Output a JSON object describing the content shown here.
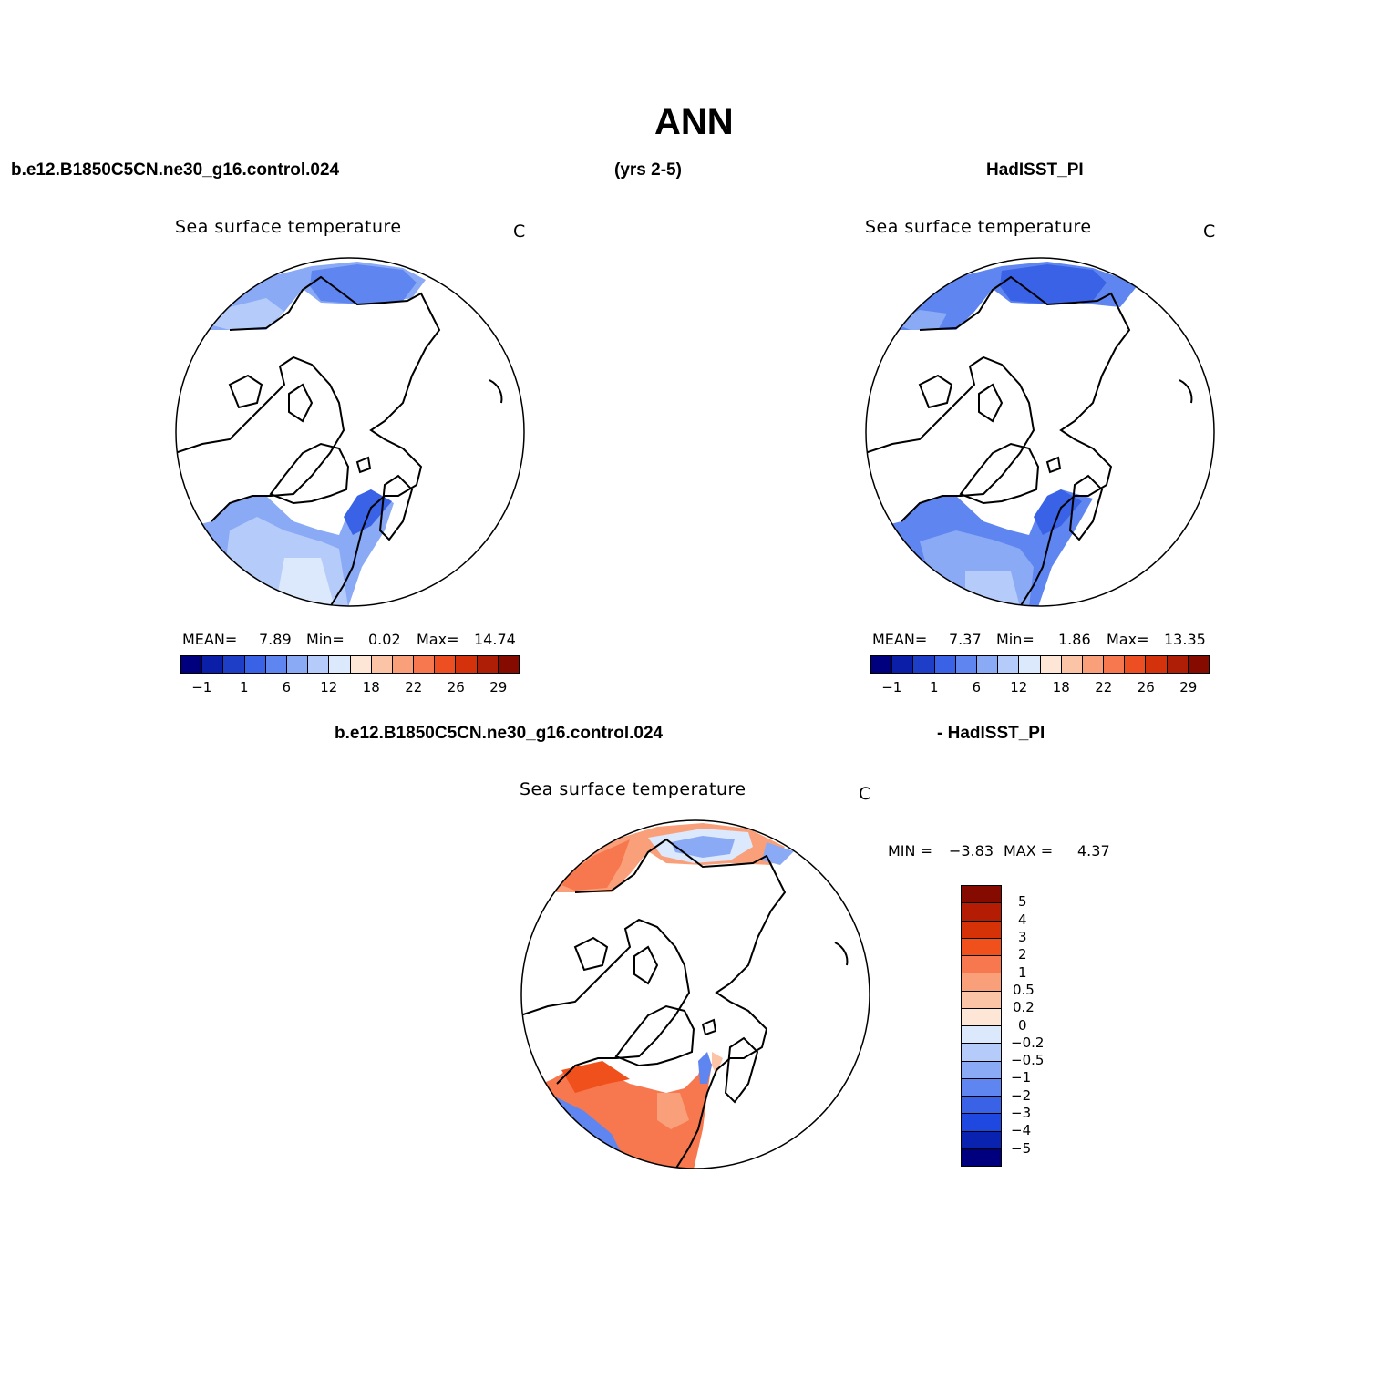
{
  "figure": {
    "title": "ANN",
    "left_header": "b.e12.B1850C5CN.ne30_g16.control.024",
    "center_header": "(yrs 2-5)",
    "right_header": "HadISST_PI",
    "diff_header_left": "b.e12.B1850C5CN.ne30_g16.control.024",
    "diff_header_right": "- HadISST_PI"
  },
  "panels": {
    "model": {
      "variable": "Sea surface temperature",
      "units": "C",
      "mean_label": "MEAN=",
      "mean": "7.89",
      "min_label": "Min=",
      "min": "0.02",
      "max_label": "Max=",
      "max": "14.74"
    },
    "obs": {
      "variable": "Sea surface temperature",
      "units": "C",
      "mean_label": "MEAN=",
      "mean": "7.37",
      "min_label": "Min=",
      "min": "1.86",
      "max_label": "Max=",
      "max": "13.35"
    },
    "diff": {
      "variable": "Sea surface temperature",
      "units": "C",
      "min_label": "MIN =",
      "min": "−3.83",
      "max_label": "MAX =",
      "max": "4.37"
    }
  },
  "colorbars": {
    "abs_colors": [
      "#00007f",
      "#0a1ea8",
      "#1e3ec8",
      "#3a62e6",
      "#5f86f0",
      "#8aaaf5",
      "#b5ccfa",
      "#dce8fb",
      "#fde6d6",
      "#fbc4a6",
      "#f9a07a",
      "#f7784e",
      "#ee4f22",
      "#d3320d",
      "#ae1d06",
      "#850a00"
    ],
    "abs_ticks": [
      "−1",
      "1",
      "6",
      "12",
      "18",
      "22",
      "26",
      "29"
    ],
    "diff_colors": [
      "#850a00",
      "#b41d04",
      "#d53208",
      "#f0501c",
      "#f7784e",
      "#f9a07a",
      "#fbc4a6",
      "#fde6d6",
      "#dce8fb",
      "#b5ccfa",
      "#8aaaf5",
      "#5f86f0",
      "#3a62e6",
      "#1e48e0",
      "#0a22b0",
      "#00007f"
    ],
    "diff_ticks": [
      "5",
      "4",
      "3",
      "2",
      "1",
      "0.5",
      "0.2",
      "0",
      "−0.2",
      "−0.5",
      "−1",
      "−2",
      "−3",
      "−4",
      "−5"
    ]
  }
}
